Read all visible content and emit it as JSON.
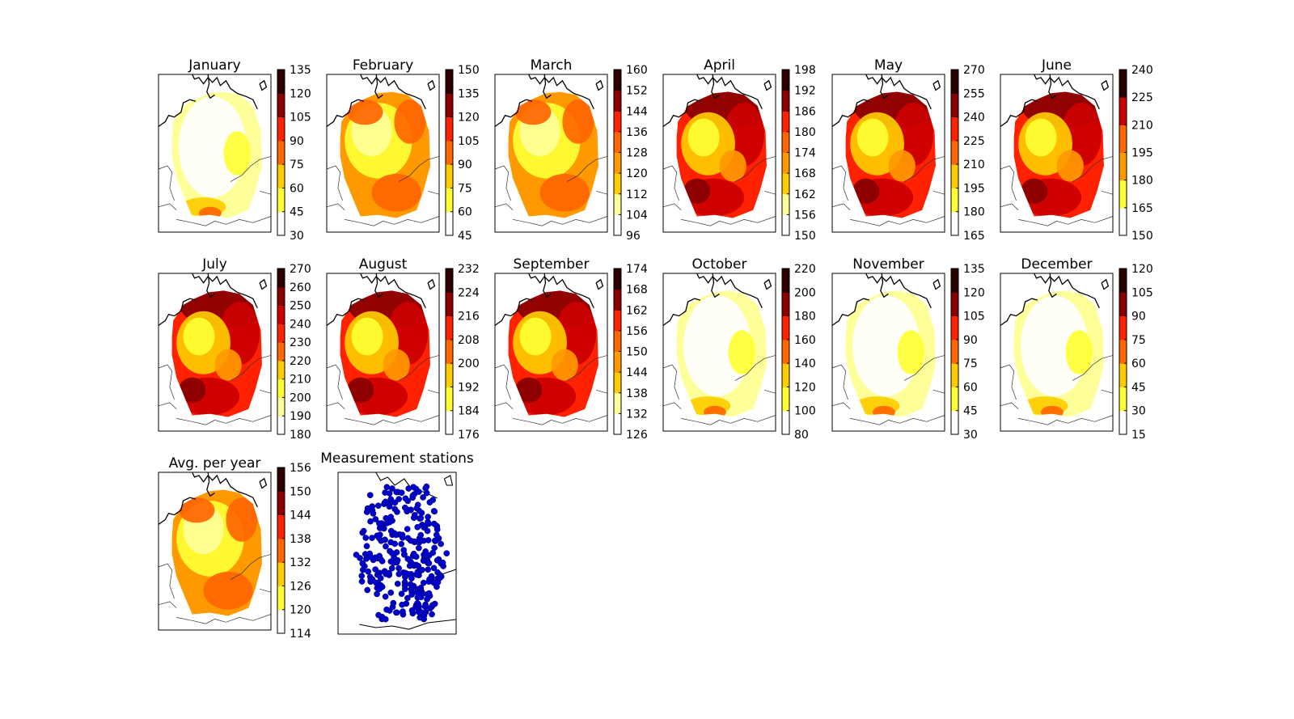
{
  "panels": [
    {
      "title": "January",
      "ticks": [
        "30",
        "45",
        "60",
        "75",
        "90",
        "105",
        "120",
        "135"
      ],
      "pattern": "low"
    },
    {
      "title": "February",
      "ticks": [
        "45",
        "60",
        "75",
        "90",
        "105",
        "120",
        "135",
        "150"
      ],
      "pattern": "mid"
    },
    {
      "title": "March",
      "ticks": [
        "96",
        "104",
        "112",
        "120",
        "128",
        "136",
        "144",
        "152",
        "160"
      ],
      "pattern": "mid"
    },
    {
      "title": "April",
      "ticks": [
        "150",
        "156",
        "162",
        "168",
        "174",
        "180",
        "186",
        "192",
        "198"
      ],
      "pattern": "hot"
    },
    {
      "title": "May",
      "ticks": [
        "165",
        "180",
        "195",
        "210",
        "225",
        "240",
        "255",
        "270"
      ],
      "pattern": "hot"
    },
    {
      "title": "June",
      "ticks": [
        "150",
        "165",
        "180",
        "195",
        "210",
        "225",
        "240"
      ],
      "pattern": "hot"
    },
    {
      "title": "July",
      "ticks": [
        "180",
        "190",
        "200",
        "210",
        "220",
        "230",
        "240",
        "250",
        "260",
        "270"
      ],
      "pattern": "hot"
    },
    {
      "title": "August",
      "ticks": [
        "176",
        "184",
        "192",
        "200",
        "208",
        "216",
        "224",
        "232"
      ],
      "pattern": "hot"
    },
    {
      "title": "September",
      "ticks": [
        "126",
        "132",
        "138",
        "144",
        "150",
        "156",
        "162",
        "168",
        "174"
      ],
      "pattern": "hot"
    },
    {
      "title": "October",
      "ticks": [
        "80",
        "100",
        "120",
        "140",
        "160",
        "180",
        "200",
        "220"
      ],
      "pattern": "low"
    },
    {
      "title": "November",
      "ticks": [
        "30",
        "45",
        "60",
        "75",
        "90",
        "105",
        "120",
        "135"
      ],
      "pattern": "low"
    },
    {
      "title": "December",
      "ticks": [
        "15",
        "30",
        "45",
        "60",
        "75",
        "90",
        "105",
        "120"
      ],
      "pattern": "low"
    },
    {
      "title": "Avg. per year",
      "ticks": [
        "114",
        "120",
        "126",
        "132",
        "138",
        "144",
        "150",
        "156"
      ],
      "pattern": "mid"
    }
  ],
  "stations_panel": {
    "title": "Measurement stations",
    "marker_color": "#0000cc"
  },
  "colormap": [
    "#ffffff",
    "#ffff99",
    "#ffff33",
    "#ffcc00",
    "#ff9900",
    "#ff6600",
    "#ff2200",
    "#cc0000",
    "#880000",
    "#2a0000"
  ]
}
